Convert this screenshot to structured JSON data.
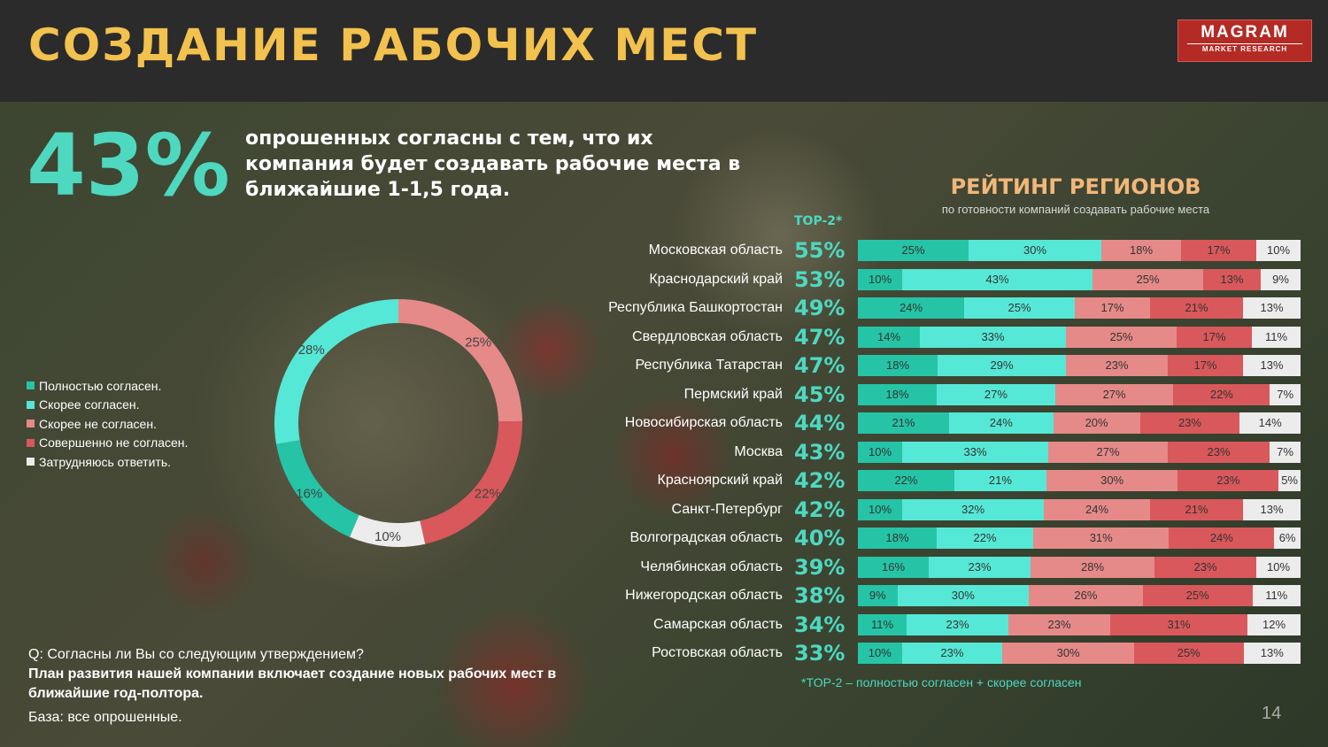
{
  "header": {
    "title": "СОЗДАНИЕ РАБОЧИХ МЕСТ",
    "logo_line1": "MAGRAM",
    "logo_line2": "MARKET RESEARCH"
  },
  "headline": {
    "stat": "43%",
    "description": "опрошенных согласны с тем, что их компания будет создавать рабочие места в ближайшие 1-1,5 года."
  },
  "colors": {
    "fully_agree": "#25c4a6",
    "agree": "#56e8d6",
    "disagree": "#e58a88",
    "fully_disagree": "#d9585b",
    "hard_to_say": "#ececec",
    "accent": "#4ed8c0",
    "title": "#f2c14e",
    "rating_title": "#f1b77a"
  },
  "legend": [
    {
      "label": "Полностью согласен.",
      "color_key": "fully_agree"
    },
    {
      "label": "Скорее согласен.",
      "color_key": "agree"
    },
    {
      "label": "Скорее не согласен.",
      "color_key": "disagree"
    },
    {
      "label": "Совершенно не согласен.",
      "color_key": "fully_disagree"
    },
    {
      "label": "Затрудняюсь ответить.",
      "color_key": "hard_to_say"
    }
  ],
  "rating": {
    "title": "РЕЙТИНГ РЕГИОНОВ",
    "subtitle": "по готовности компаний создавать рабочие места",
    "top2_header": "TOP-2*",
    "footnote": "*TOP-2 – полностью согласен + скорее согласен"
  },
  "question": {
    "line1": "Q: Согласны ли Вы со следующим утверждением?",
    "line2": "План развития нашей компании включает создание новых рабочих мест в ближайшие год-полтора."
  },
  "base": "База: все опрошенные.",
  "page_number": "14",
  "chart_data": [
    {
      "type": "pie",
      "categories": [
        "Полностью согласен.",
        "Скорее согласен.",
        "Скорее не согласен.",
        "Совершенно не согласен.",
        "Затрудняюсь ответить."
      ],
      "values": [
        16,
        28,
        25,
        22,
        10
      ],
      "labels": [
        "16%",
        "28%",
        "25%",
        "22%",
        "10%"
      ],
      "donut": true
    },
    {
      "type": "bar",
      "stacked": true,
      "orientation": "horizontal",
      "categories": [
        "Московская область",
        "Краснодарский край",
        "Республика Башкортостан",
        "Свердловская область",
        "Республика Татарстан",
        "Пермский край",
        "Новосибирская область",
        "Москва",
        "Красноярский край",
        "Санкт-Петербург",
        "Волгоградская область",
        "Челябинская область",
        "Нижегородская область",
        "Самарская область",
        "Ростовская область"
      ],
      "top2": [
        "55%",
        "53%",
        "49%",
        "47%",
        "47%",
        "45%",
        "44%",
        "43%",
        "42%",
        "42%",
        "40%",
        "39%",
        "38%",
        "34%",
        "33%"
      ],
      "series": [
        {
          "name": "Полностью согласен.",
          "values": [
            25,
            10,
            24,
            14,
            18,
            18,
            21,
            10,
            22,
            10,
            18,
            16,
            9,
            11,
            10
          ]
        },
        {
          "name": "Скорее согласен.",
          "values": [
            30,
            43,
            25,
            33,
            29,
            27,
            24,
            33,
            21,
            32,
            22,
            23,
            30,
            23,
            23
          ]
        },
        {
          "name": "Скорее не согласен.",
          "values": [
            18,
            25,
            17,
            25,
            23,
            27,
            20,
            27,
            30,
            24,
            31,
            28,
            26,
            23,
            30
          ]
        },
        {
          "name": "Совершенно не согласен.",
          "values": [
            17,
            13,
            21,
            17,
            17,
            22,
            23,
            23,
            23,
            21,
            24,
            23,
            25,
            31,
            25
          ]
        },
        {
          "name": "Затрудняюсь ответить.",
          "values": [
            10,
            9,
            13,
            11,
            13,
            7,
            14,
            7,
            5,
            13,
            6,
            10,
            11,
            12,
            13
          ]
        }
      ]
    }
  ]
}
